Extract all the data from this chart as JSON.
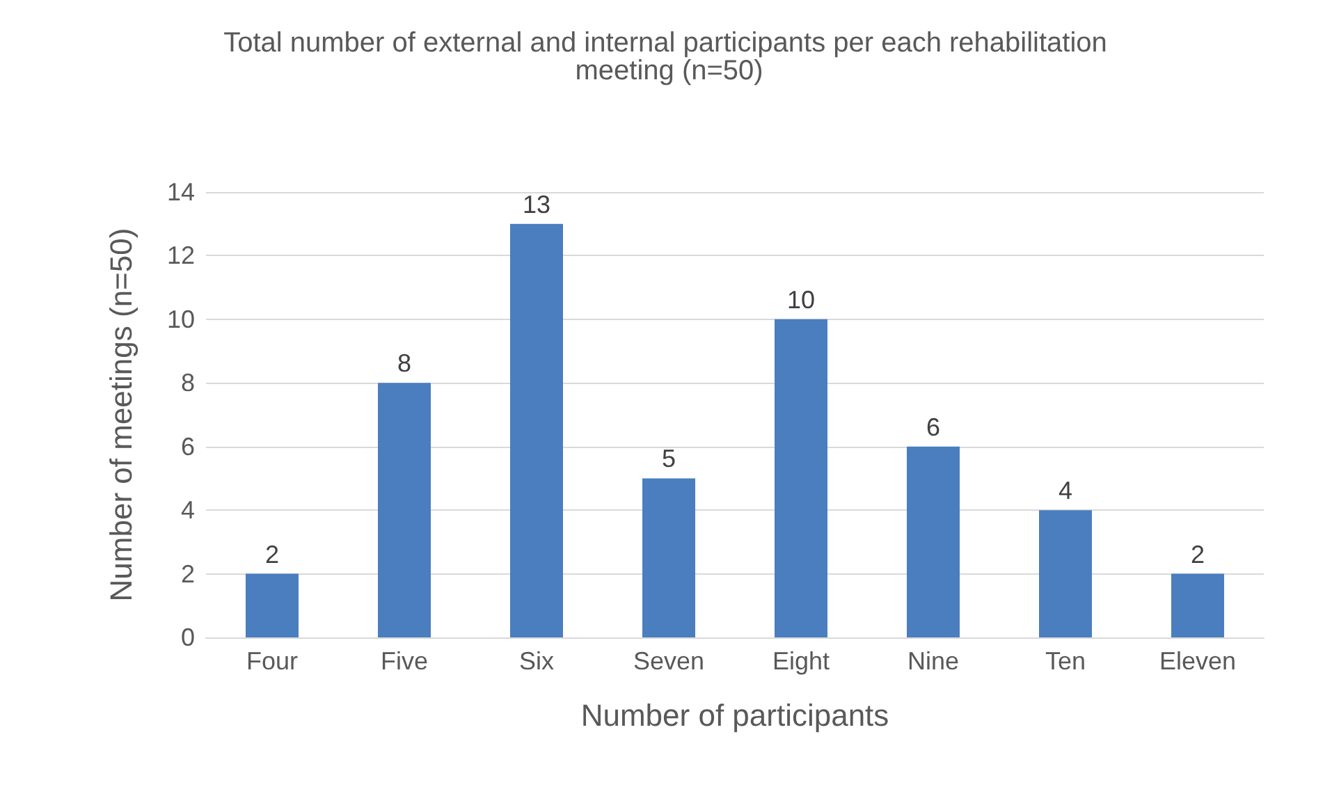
{
  "chart_data": {
    "type": "bar",
    "title": "Total number of external and internal participants per each rehabilitation meeting (n=50)",
    "xlabel": "Number of participants",
    "ylabel": "Number of meetings (n=50)",
    "categories": [
      "Four",
      "Five",
      "Six",
      "Seven",
      "Eight",
      "Nine",
      "Ten",
      "Eleven"
    ],
    "values": [
      2,
      8,
      13,
      5,
      10,
      6,
      4,
      2
    ],
    "color": "#4a7ebf",
    "ylim": [
      0,
      14
    ],
    "yticks": [
      0,
      2,
      4,
      6,
      8,
      10,
      12,
      14
    ],
    "grid": "y",
    "data_labels": true
  }
}
